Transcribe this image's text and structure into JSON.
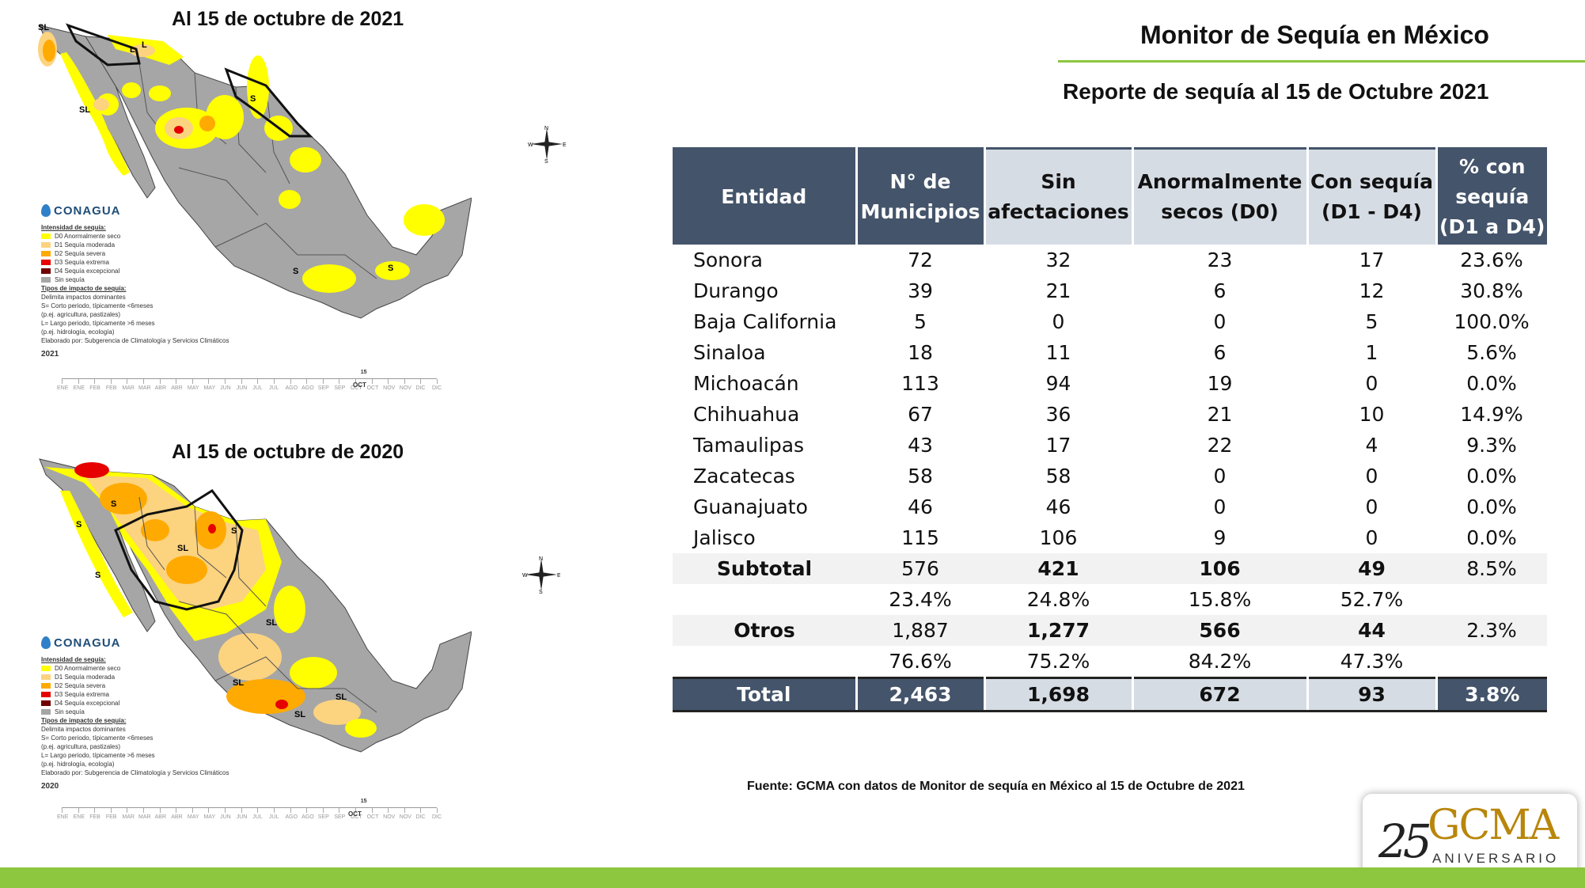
{
  "map_2021": {
    "title": "Al 15 de octubre de 2021",
    "year": "2021",
    "labels": [
      "SL",
      "L",
      "L",
      "S",
      "SL",
      "S",
      "S"
    ]
  },
  "map_2020": {
    "title": "Al 15 de octubre de 2020",
    "year": "2020",
    "labels": [
      "S",
      "S",
      "SL",
      "S",
      "S",
      "SL",
      "SL",
      "SL",
      "SL"
    ]
  },
  "legend": {
    "logo": "CONAGUA",
    "intensity_heading": "Intensidad de sequía:",
    "intensity": [
      {
        "label": "D0 Anormalmente seco",
        "color": "#ffff00"
      },
      {
        "label": "D1 Sequía moderada",
        "color": "#fcd37f"
      },
      {
        "label": "D2 Sequía severa",
        "color": "#ffaa00"
      },
      {
        "label": "D3 Sequía extrema",
        "color": "#e60000"
      },
      {
        "label": "D4 Sequía excepcional",
        "color": "#730000"
      },
      {
        "label": "Sin sequía",
        "color": "#a6a6a6"
      }
    ],
    "impact_heading": "Tipos de impacto de sequía:",
    "impact_lines": [
      "Delimita impactos dominantes",
      "S= Corto periodo, típicamente <6meses",
      "(p.ej. agricultura, pastizales)",
      "L= Largo periodo, típicamente >6 meses",
      "(p.ej. hidrología, ecología)",
      "Elaborado por: Subgerencia de Climatología y Servicios Climáticos"
    ]
  },
  "timeline": {
    "months": [
      "ENE",
      "ENE",
      "FEB",
      "FEB",
      "MAR",
      "MAR",
      "ABR",
      "ABR",
      "MAY",
      "MAY",
      "JUN",
      "JUN",
      "JUL",
      "JUL",
      "AGO",
      "AGO",
      "SEP",
      "SEP",
      "OCT",
      "OCT",
      "NOV",
      "NOV",
      "DIC",
      "DIC"
    ],
    "marker_day": "15",
    "marker_month": "OCT"
  },
  "compass": {
    "n": "N",
    "e": "E",
    "s": "S",
    "w": "W"
  },
  "header": {
    "title": "Monitor de Sequía en México",
    "subtitle": "Reporte de sequía al 15 de Octubre 2021"
  },
  "table": {
    "headers": {
      "entidad": "Entidad",
      "municipios_1": "N° de",
      "municipios_2": "Municipios",
      "sin_1": "Sin",
      "sin_2": "afectaciones",
      "anormal_1": "Anormalmente",
      "anormal_2": "secos (D0)",
      "con_1": "Con sequía",
      "con_2": "(D1 - D4)",
      "pct_1": "% con",
      "pct_2": "sequía",
      "pct_3": "(D1 a D4)"
    },
    "rows": [
      {
        "entidad": "Sonora",
        "municipios": "72",
        "sin": "32",
        "d0": "23",
        "d1d4": "17",
        "pct": "23.6%"
      },
      {
        "entidad": "Durango",
        "municipios": "39",
        "sin": "21",
        "d0": "6",
        "d1d4": "12",
        "pct": "30.8%"
      },
      {
        "entidad": "Baja California",
        "municipios": "5",
        "sin": "0",
        "d0": "0",
        "d1d4": "5",
        "pct": "100.0%"
      },
      {
        "entidad": "Sinaloa",
        "municipios": "18",
        "sin": "11",
        "d0": "6",
        "d1d4": "1",
        "pct": "5.6%"
      },
      {
        "entidad": "Michoacán",
        "municipios": "113",
        "sin": "94",
        "d0": "19",
        "d1d4": "0",
        "pct": "0.0%"
      },
      {
        "entidad": "Chihuahua",
        "municipios": "67",
        "sin": "36",
        "d0": "21",
        "d1d4": "10",
        "pct": "14.9%"
      },
      {
        "entidad": "Tamaulipas",
        "municipios": "43",
        "sin": "17",
        "d0": "22",
        "d1d4": "4",
        "pct": "9.3%"
      },
      {
        "entidad": "Zacatecas",
        "municipios": "58",
        "sin": "58",
        "d0": "0",
        "d1d4": "0",
        "pct": "0.0%"
      },
      {
        "entidad": "Guanajuato",
        "municipios": "46",
        "sin": "46",
        "d0": "0",
        "d1d4": "0",
        "pct": "0.0%"
      },
      {
        "entidad": "Jalisco",
        "municipios": "115",
        "sin": "106",
        "d0": "9",
        "d1d4": "0",
        "pct": "0.0%"
      }
    ],
    "subtotal": {
      "entidad": "Subtotal",
      "municipios": "576",
      "sin": "421",
      "d0": "106",
      "d1d4": "49",
      "pct": "8.5%"
    },
    "subtotal_pct": {
      "municipios": "23.4%",
      "sin": "24.8%",
      "d0": "15.8%",
      "d1d4": "52.7%"
    },
    "otros": {
      "entidad": "Otros",
      "municipios": "1,887",
      "sin": "1,277",
      "d0": "566",
      "d1d4": "44",
      "pct": "2.3%"
    },
    "otros_pct": {
      "municipios": "76.6%",
      "sin": "75.2%",
      "d0": "84.2%",
      "d1d4": "47.3%"
    },
    "total": {
      "entidad": "Total",
      "municipios": "2,463",
      "sin": "1,698",
      "d0": "672",
      "d1d4": "93",
      "pct": "3.8%"
    }
  },
  "source": "Fuente: GCMA con datos de Monitor de sequía en México al 15 de Octubre de 2021",
  "logo": {
    "number": "25",
    "brand": "GCMA",
    "tagline": "ANIVERSARIO"
  },
  "colors": {
    "header_dark": "#44546a",
    "header_light": "#d6dce4",
    "accent_green": "#8dc63f",
    "map_gray": "#a6a6a6",
    "d0": "#ffff00",
    "d1": "#fcd37f",
    "d2": "#ffaa00",
    "d3": "#e60000"
  }
}
